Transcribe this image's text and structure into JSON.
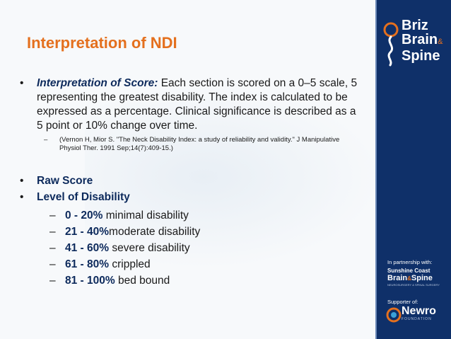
{
  "slide": {
    "title": "Interpretation of NDI",
    "bullets": {
      "interpretation_label": "Interpretation of Score:",
      "interpretation_text": " Each section is scored on a 0–5 scale, 5 representing the greatest disability.  The index is calculated to be expressed as a percentage.  Clinical significance is described as a 5 point or 10% change over time.",
      "reference": "(Vernon H, Mior S. \"The Neck Disability Index: a study of reliability and validity.\" J Manipulative Physiol Ther. 1991 Sep;14(7):409-15.)",
      "raw_score": "Raw Score",
      "level_label": "Level of Disability"
    },
    "levels": [
      {
        "range": " 0 - 20%",
        "desc": " minimal disability"
      },
      {
        "range": "21 - 40%",
        "desc": "moderate disability"
      },
      {
        "range": "41 - 60%",
        "desc": " severe disability"
      },
      {
        "range": "61 - 80%",
        "desc": " crippled"
      },
      {
        "range": "81 - 100%",
        "desc": " bed bound"
      }
    ],
    "bullet_symbol": "•",
    "dash_symbol": "–"
  },
  "sidebar": {
    "logo_line1": "Briz",
    "logo_line2": "Brain",
    "logo_amp": "&",
    "logo_line3": "Spine",
    "partner_label": "In partnership with:",
    "partner_line1": "Sunshine Coast",
    "partner_line2a": "Brain",
    "partner_amp": "&",
    "partner_line2b": "Spine",
    "partner_line3": "NEUROSURGERY & SPINAL SURGERY",
    "supporter_label": "Supporter of:",
    "newro_name": "Newro",
    "newro_sub": "FOUNDATION"
  },
  "colors": {
    "title": "#e4701e",
    "sidebar": "#0f3069",
    "emphasis": "#0d2a5c"
  }
}
